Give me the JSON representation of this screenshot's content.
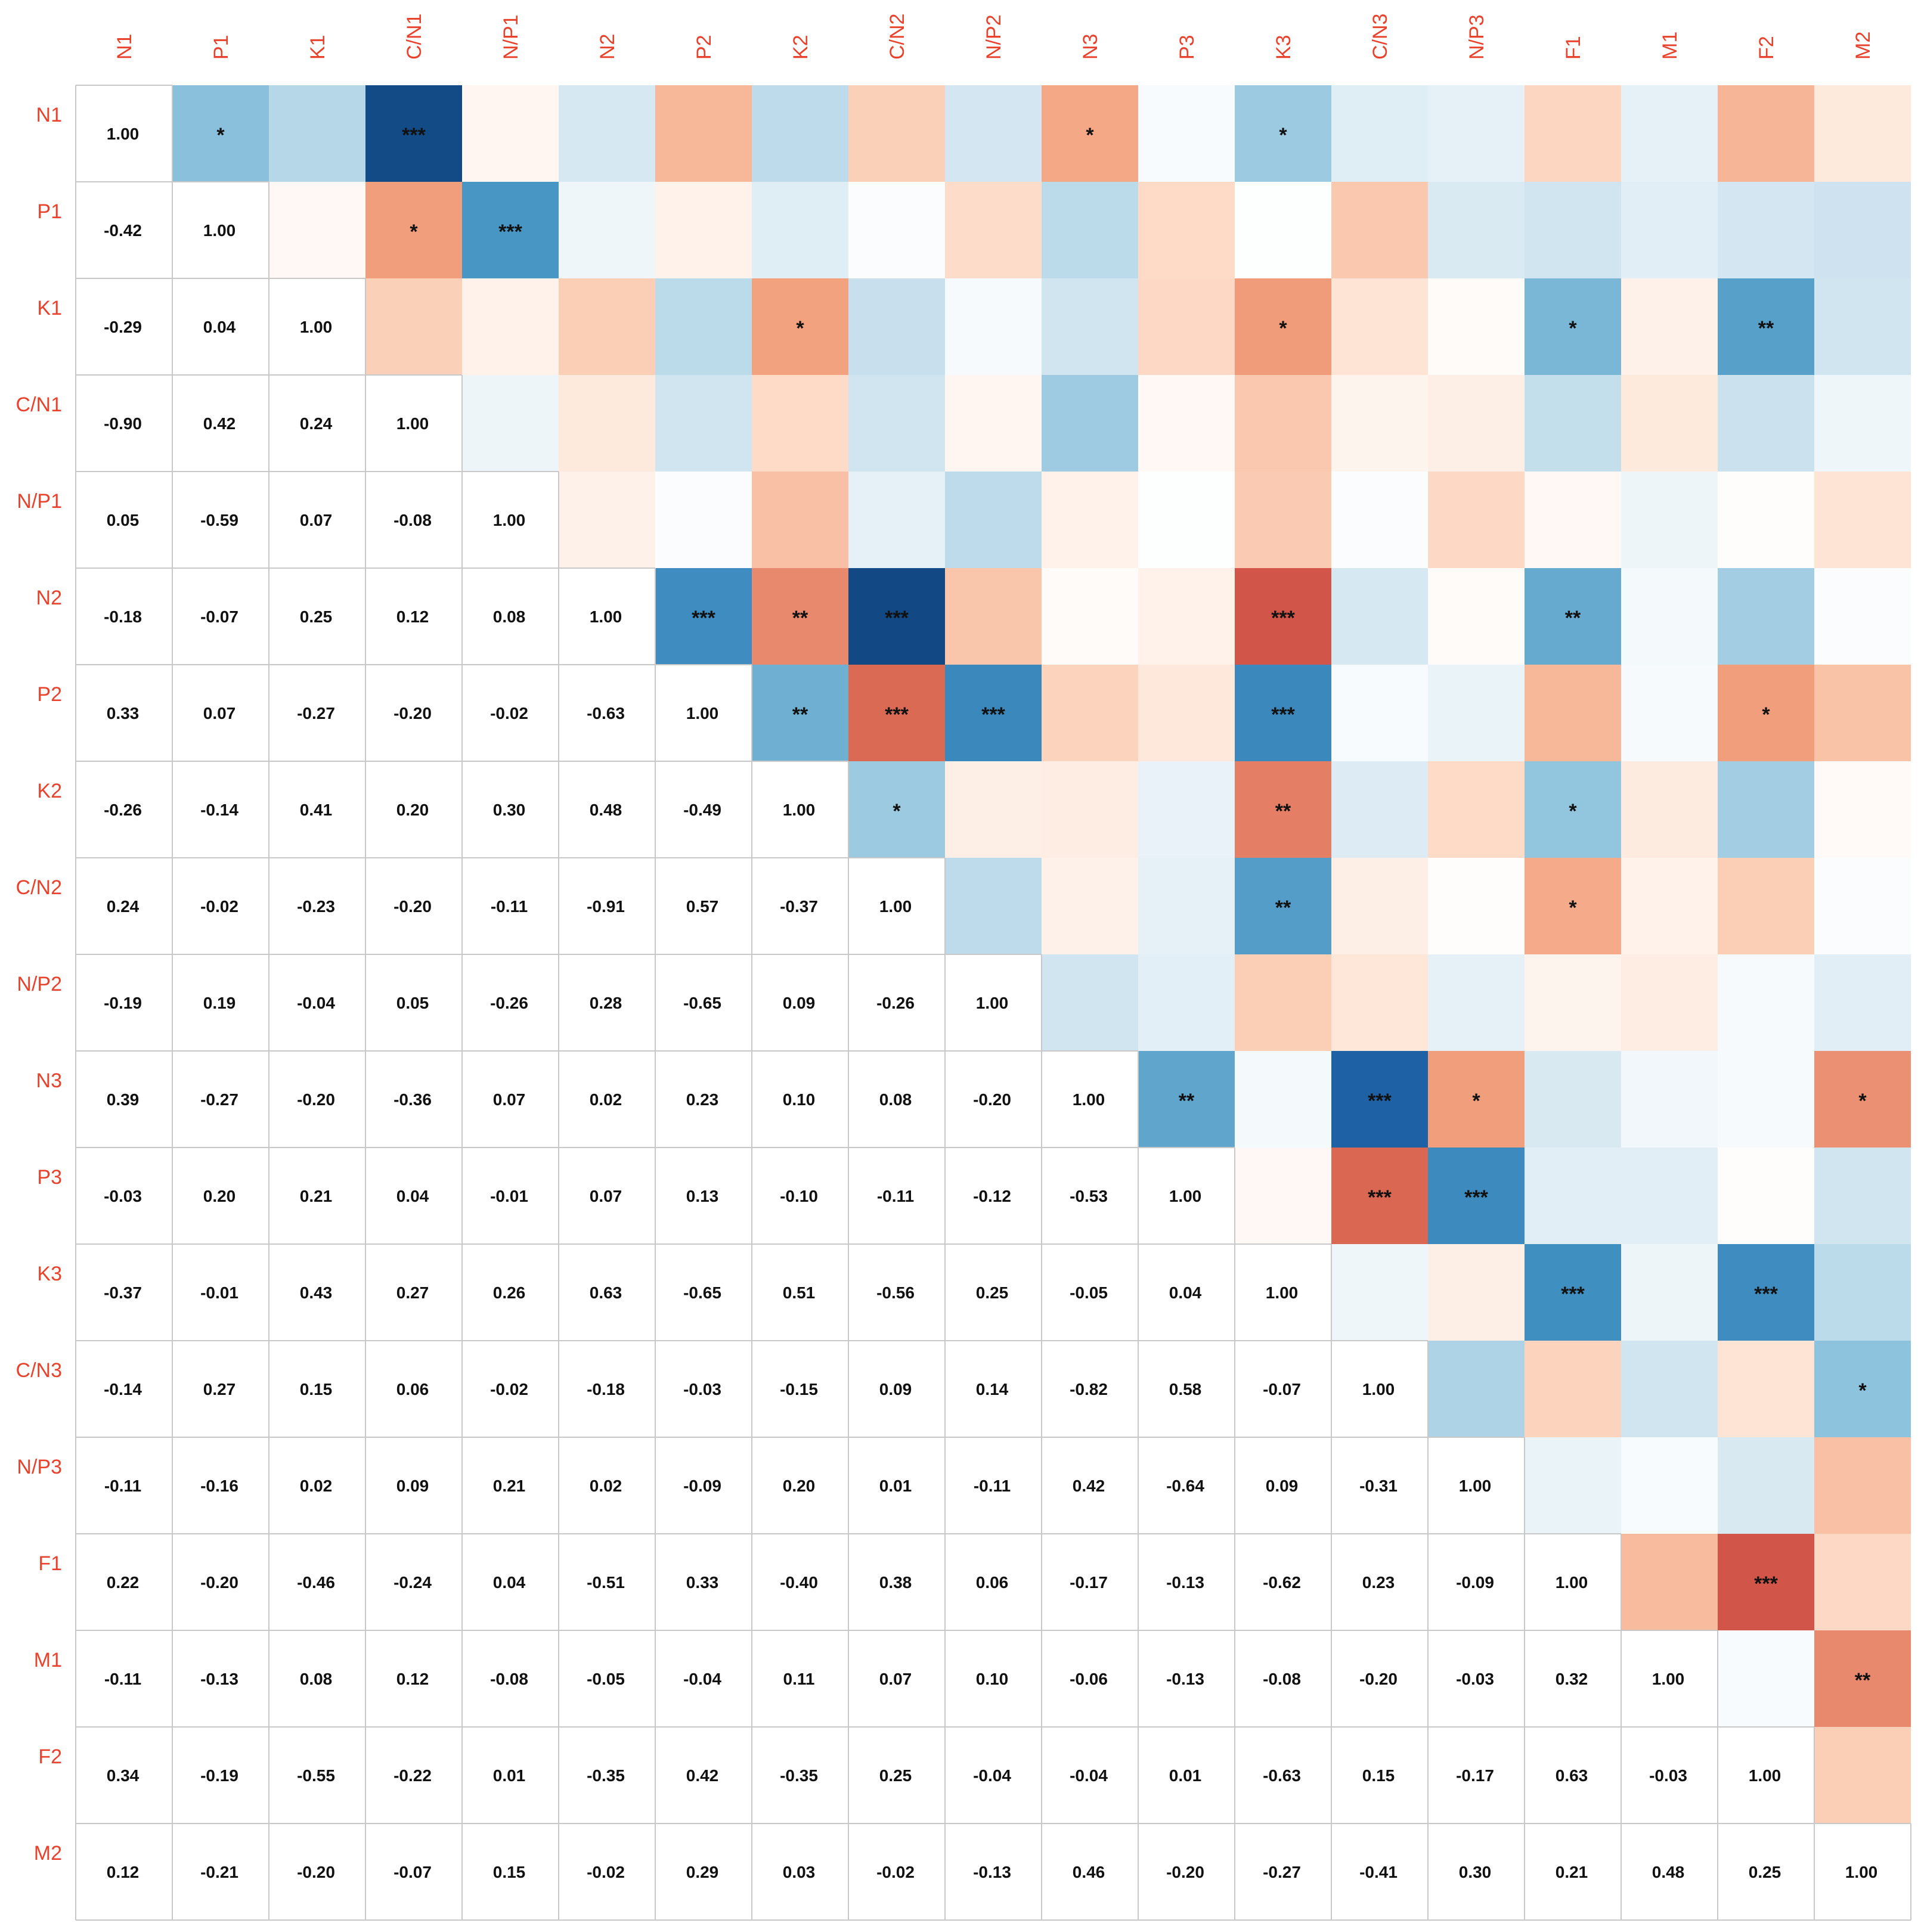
{
  "chart_data": {
    "type": "heatmap",
    "labels": [
      "N1",
      "P1",
      "K1",
      "C/N1",
      "N/P1",
      "N2",
      "P2",
      "K2",
      "C/N2",
      "N/P2",
      "N3",
      "P3",
      "K3",
      "C/N3",
      "N/P3",
      "F1",
      "M1",
      "F2",
      "M2"
    ],
    "matrix": [
      [
        1.0,
        -0.42,
        -0.29,
        -0.9,
        0.05,
        -0.18,
        0.33,
        -0.26,
        0.24,
        -0.19,
        0.39,
        -0.03,
        -0.37,
        -0.14,
        -0.11,
        0.22,
        -0.11,
        0.34,
        0.12
      ],
      [
        -0.42,
        1.0,
        0.04,
        0.42,
        -0.59,
        -0.07,
        0.07,
        -0.14,
        -0.02,
        0.19,
        -0.27,
        0.2,
        -0.01,
        0.27,
        -0.16,
        -0.2,
        -0.13,
        -0.19,
        -0.21
      ],
      [
        -0.29,
        0.04,
        1.0,
        0.24,
        0.07,
        0.25,
        -0.27,
        0.41,
        -0.23,
        -0.04,
        -0.2,
        0.21,
        0.43,
        0.15,
        0.02,
        -0.46,
        0.08,
        -0.55,
        -0.2
      ],
      [
        -0.9,
        0.42,
        0.24,
        1.0,
        -0.08,
        0.12,
        -0.2,
        0.2,
        -0.2,
        0.05,
        -0.36,
        0.04,
        0.27,
        0.06,
        0.09,
        -0.24,
        0.12,
        -0.22,
        -0.07
      ],
      [
        0.05,
        -0.59,
        0.07,
        -0.08,
        1.0,
        0.08,
        -0.02,
        0.3,
        -0.11,
        -0.26,
        0.07,
        -0.01,
        0.26,
        -0.02,
        0.21,
        0.04,
        -0.08,
        0.01,
        0.15
      ],
      [
        -0.18,
        -0.07,
        0.25,
        0.12,
        0.08,
        1.0,
        -0.63,
        0.48,
        -0.91,
        0.28,
        0.02,
        0.07,
        0.63,
        -0.18,
        0.02,
        -0.51,
        -0.05,
        -0.35,
        -0.02
      ],
      [
        0.33,
        0.07,
        -0.27,
        -0.2,
        -0.02,
        -0.63,
        1.0,
        -0.49,
        0.57,
        -0.65,
        0.23,
        0.13,
        -0.65,
        -0.03,
        -0.09,
        0.33,
        -0.04,
        0.42,
        0.29
      ],
      [
        -0.26,
        -0.14,
        0.41,
        0.2,
        0.3,
        0.48,
        -0.49,
        1.0,
        -0.37,
        0.09,
        0.1,
        -0.1,
        0.51,
        -0.15,
        0.2,
        -0.4,
        0.11,
        -0.35,
        0.03
      ],
      [
        0.24,
        -0.02,
        -0.23,
        -0.2,
        -0.11,
        -0.91,
        0.57,
        -0.37,
        1.0,
        -0.26,
        0.08,
        -0.11,
        -0.56,
        0.09,
        0.01,
        0.38,
        0.07,
        0.25,
        -0.02
      ],
      [
        -0.19,
        0.19,
        -0.04,
        0.05,
        -0.26,
        0.28,
        -0.65,
        0.09,
        -0.26,
        1.0,
        -0.2,
        -0.12,
        0.25,
        0.14,
        -0.11,
        0.06,
        0.1,
        -0.04,
        -0.13
      ],
      [
        0.39,
        -0.27,
        -0.2,
        -0.36,
        0.07,
        0.02,
        0.23,
        0.1,
        0.08,
        -0.2,
        1.0,
        -0.53,
        -0.05,
        -0.82,
        0.42,
        -0.17,
        -0.06,
        -0.04,
        0.46
      ],
      [
        -0.03,
        0.2,
        0.21,
        0.04,
        -0.01,
        0.07,
        0.13,
        -0.1,
        -0.11,
        -0.12,
        -0.53,
        1.0,
        0.04,
        0.58,
        -0.64,
        -0.13,
        -0.13,
        0.01,
        -0.2
      ],
      [
        -0.37,
        -0.01,
        0.43,
        0.27,
        0.26,
        0.63,
        -0.65,
        0.51,
        -0.56,
        0.25,
        -0.05,
        0.04,
        1.0,
        -0.07,
        0.09,
        -0.62,
        -0.08,
        -0.63,
        -0.27
      ],
      [
        -0.14,
        0.27,
        0.15,
        0.06,
        -0.02,
        -0.18,
        -0.03,
        -0.15,
        0.09,
        0.14,
        -0.82,
        0.58,
        -0.07,
        1.0,
        -0.31,
        0.23,
        -0.2,
        0.15,
        -0.41
      ],
      [
        -0.11,
        -0.16,
        0.02,
        0.09,
        0.21,
        0.02,
        -0.09,
        0.2,
        0.01,
        -0.11,
        0.42,
        -0.64,
        0.09,
        -0.31,
        1.0,
        -0.09,
        -0.03,
        -0.17,
        0.3
      ],
      [
        0.22,
        -0.2,
        -0.46,
        -0.24,
        0.04,
        -0.51,
        0.33,
        -0.4,
        0.38,
        0.06,
        -0.17,
        -0.13,
        -0.62,
        0.23,
        -0.09,
        1.0,
        0.32,
        0.63,
        0.21
      ],
      [
        -0.11,
        -0.13,
        0.08,
        0.12,
        -0.08,
        -0.05,
        -0.04,
        0.11,
        0.07,
        0.1,
        -0.06,
        -0.13,
        -0.08,
        -0.2,
        -0.03,
        0.32,
        1.0,
        -0.03,
        0.48
      ],
      [
        0.34,
        -0.19,
        -0.55,
        -0.22,
        0.01,
        -0.35,
        0.42,
        -0.35,
        0.25,
        -0.04,
        -0.04,
        0.01,
        -0.63,
        0.15,
        -0.17,
        0.63,
        -0.03,
        1.0,
        0.25
      ],
      [
        0.12,
        -0.21,
        -0.2,
        -0.07,
        0.15,
        -0.02,
        0.29,
        0.03,
        -0.02,
        -0.13,
        0.46,
        -0.2,
        -0.27,
        -0.41,
        0.3,
        0.21,
        0.48,
        0.25,
        1.0
      ]
    ],
    "significance": [
      [
        0,
        1,
        1
      ],
      [
        0,
        3,
        3
      ],
      [
        0,
        10,
        1
      ],
      [
        0,
        12,
        1
      ],
      [
        1,
        3,
        1
      ],
      [
        1,
        4,
        3
      ],
      [
        2,
        7,
        1
      ],
      [
        2,
        12,
        1
      ],
      [
        2,
        15,
        1
      ],
      [
        2,
        17,
        2
      ],
      [
        5,
        6,
        3
      ],
      [
        5,
        7,
        2
      ],
      [
        5,
        8,
        3
      ],
      [
        5,
        12,
        3
      ],
      [
        5,
        15,
        2
      ],
      [
        6,
        7,
        2
      ],
      [
        6,
        8,
        3
      ],
      [
        6,
        9,
        3
      ],
      [
        6,
        12,
        3
      ],
      [
        6,
        17,
        1
      ],
      [
        7,
        8,
        1
      ],
      [
        7,
        12,
        2
      ],
      [
        7,
        15,
        1
      ],
      [
        8,
        12,
        2
      ],
      [
        8,
        15,
        1
      ],
      [
        10,
        11,
        2
      ],
      [
        10,
        13,
        3
      ],
      [
        10,
        14,
        1
      ],
      [
        10,
        18,
        1
      ],
      [
        11,
        13,
        3
      ],
      [
        11,
        14,
        3
      ],
      [
        12,
        15,
        3
      ],
      [
        12,
        17,
        3
      ],
      [
        13,
        18,
        1
      ],
      [
        15,
        17,
        3
      ],
      [
        16,
        18,
        2
      ]
    ],
    "lower_triangle": "numbers",
    "upper_triangle": "colors",
    "colormap": {
      "negative": "#053061",
      "zero": "#f7f7f7",
      "positive": "#67001f"
    },
    "label_color": "#e8412c"
  }
}
